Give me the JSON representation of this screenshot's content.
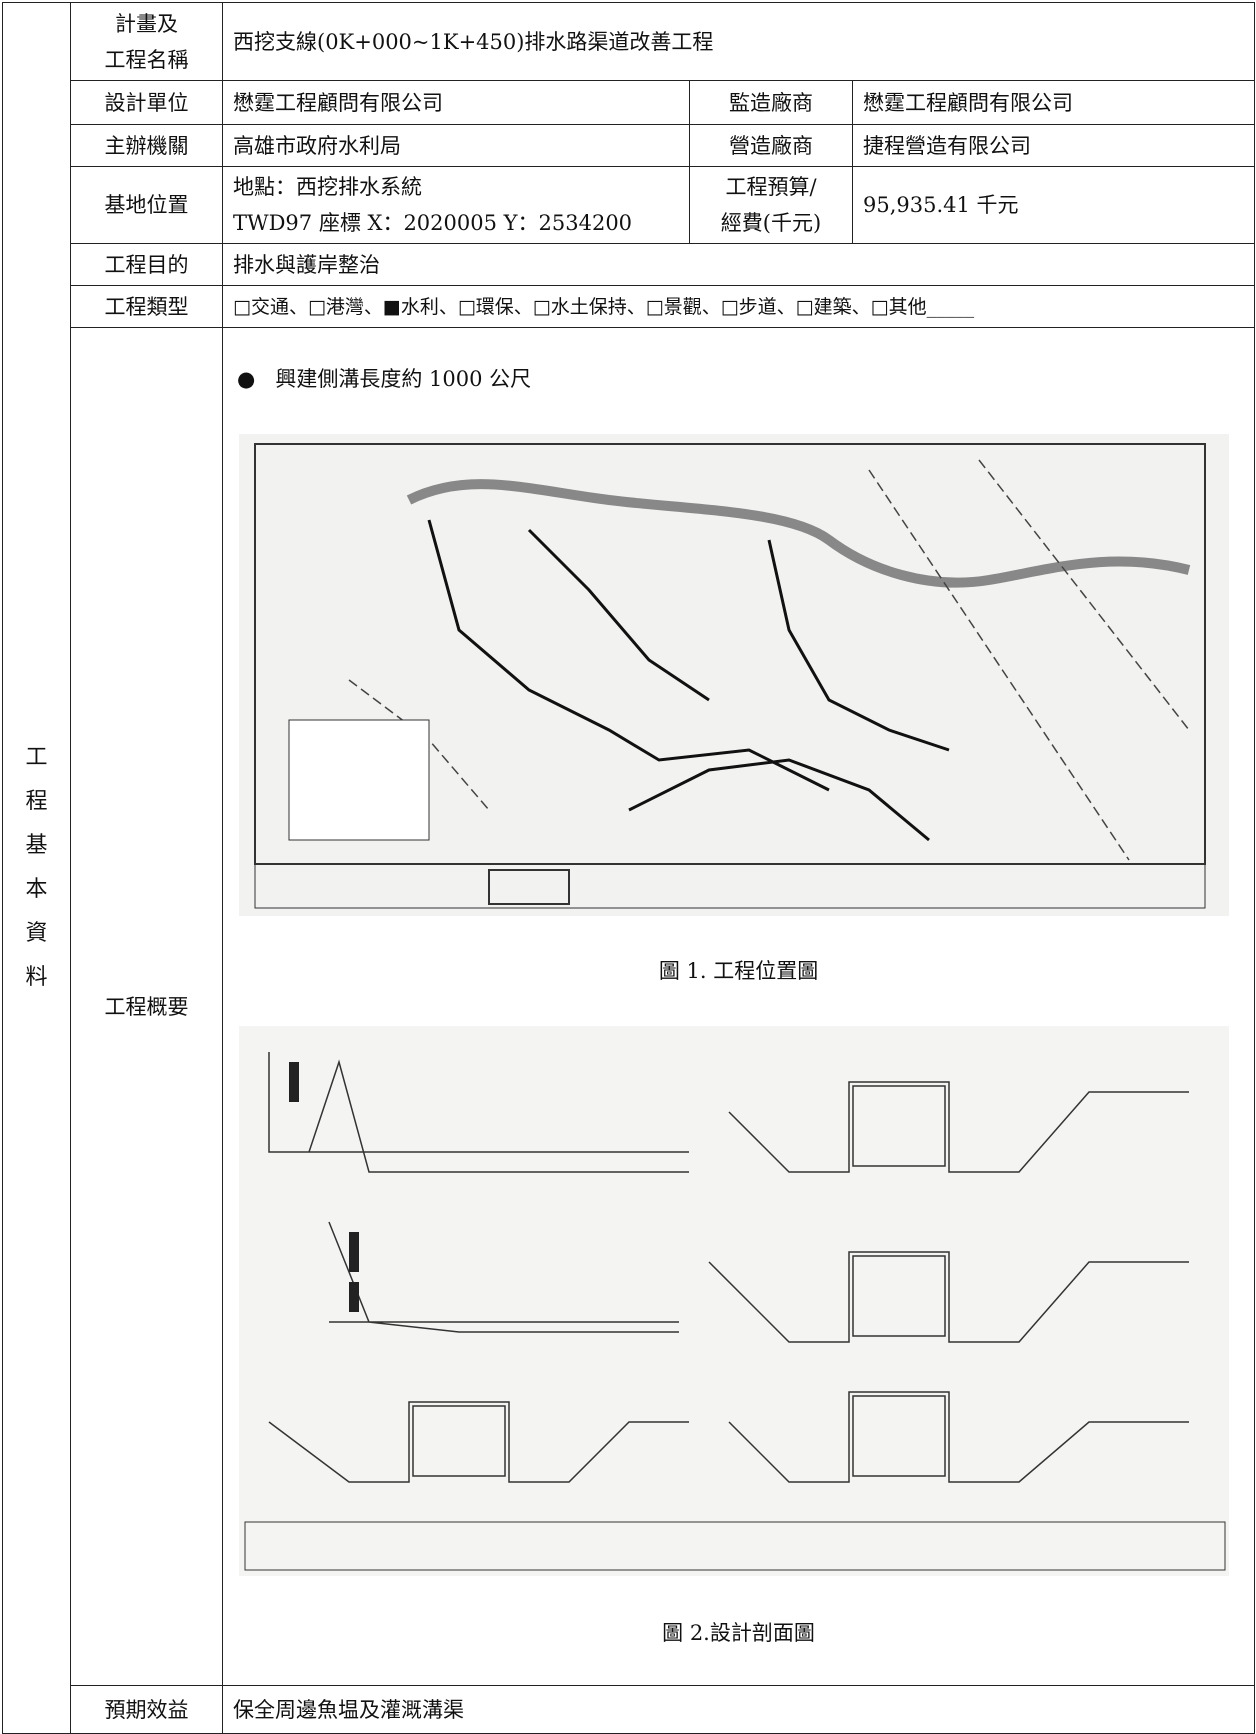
{
  "section_label": "工\n程\n基\n本\n資\n料",
  "rows": {
    "project_name": {
      "label": "計畫及\n工程名稱",
      "value": "西挖支線(0K+000~1K+450)排水路渠道改善工程"
    },
    "design": {
      "label": "設計單位",
      "value": "懋霆工程顧問有限公司",
      "label2": "監造廠商",
      "value2": "懋霆工程顧問有限公司"
    },
    "host": {
      "label": "主辦機關",
      "value": "高雄市政府水利局",
      "label2": "營造廠商",
      "value2": "捷程營造有限公司"
    },
    "site": {
      "label": "基地位置",
      "value": "地點：西挖排水系統\nTWD97 座標 X：2020005 Y：2534200",
      "label2": "工程預算/\n經費(千元)",
      "value2": "95,935.41 千元"
    },
    "purpose": {
      "label": "工程目的",
      "value": "排水與護岸整治"
    },
    "category": {
      "label": "工程類型",
      "value": "□交通、□港灣、■水利、□環保、□水土保持、□景觀、□步道、□建築、□其他_____"
    },
    "summary": {
      "label": "工程概要",
      "bullet": "興建側溝長度約 1000 公尺",
      "figure1_caption": "圖 1. 工程位置圖",
      "figure2_caption": "圖 2.設計剖面圖"
    },
    "benefit": {
      "label": "預期效益",
      "value": "保全周邊魚塭及灌溉溝渠"
    }
  }
}
